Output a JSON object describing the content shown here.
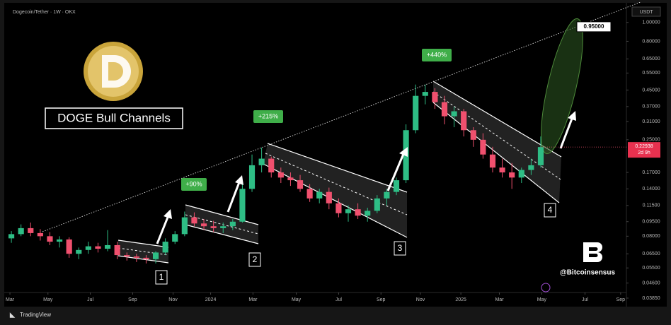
{
  "chart_data": {
    "type": "candlestick",
    "title": "Dogecoin/Tether · 1W · OKX",
    "unit": "USDT",
    "log_scale": true,
    "grid": false,
    "up_color": "#2ebd85",
    "down_color": "#f0506e",
    "open": [
      0.078,
      0.082,
      0.088,
      0.083,
      0.08,
      0.075,
      0.077,
      0.065,
      0.068,
      0.071,
      0.069,
      0.072,
      0.064,
      0.063,
      0.062,
      0.061,
      0.066,
      0.075,
      0.082,
      0.1,
      0.093,
      0.09,
      0.088,
      0.09,
      0.095,
      0.14,
      0.185,
      0.2,
      0.17,
      0.16,
      0.155,
      0.14,
      0.125,
      0.135,
      0.118,
      0.105,
      0.11,
      0.102,
      0.108,
      0.125,
      0.135,
      0.155,
      0.28,
      0.42,
      0.44,
      0.39,
      0.33,
      0.35,
      0.28,
      0.25,
      0.21,
      0.18,
      0.17,
      0.16,
      0.175,
      0.185
    ],
    "high": [
      0.085,
      0.092,
      0.094,
      0.087,
      0.084,
      0.08,
      0.079,
      0.07,
      0.075,
      0.074,
      0.086,
      0.075,
      0.066,
      0.065,
      0.064,
      0.067,
      0.078,
      0.085,
      0.107,
      0.106,
      0.098,
      0.096,
      0.094,
      0.098,
      0.15,
      0.21,
      0.228,
      0.205,
      0.18,
      0.17,
      0.165,
      0.148,
      0.14,
      0.142,
      0.125,
      0.115,
      0.118,
      0.112,
      0.13,
      0.14,
      0.16,
      0.3,
      0.48,
      0.48,
      0.46,
      0.42,
      0.37,
      0.36,
      0.29,
      0.27,
      0.23,
      0.2,
      0.19,
      0.18,
      0.2,
      0.26
    ],
    "low": [
      0.074,
      0.08,
      0.08,
      0.076,
      0.072,
      0.07,
      0.062,
      0.061,
      0.065,
      0.066,
      0.067,
      0.061,
      0.06,
      0.059,
      0.058,
      0.058,
      0.064,
      0.073,
      0.08,
      0.09,
      0.086,
      0.084,
      0.083,
      0.086,
      0.094,
      0.135,
      0.17,
      0.16,
      0.15,
      0.145,
      0.135,
      0.12,
      0.118,
      0.11,
      0.1,
      0.095,
      0.098,
      0.095,
      0.105,
      0.115,
      0.13,
      0.15,
      0.27,
      0.38,
      0.36,
      0.3,
      0.29,
      0.26,
      0.23,
      0.2,
      0.17,
      0.16,
      0.14,
      0.15,
      0.165,
      0.18
    ],
    "close": [
      0.082,
      0.088,
      0.083,
      0.08,
      0.075,
      0.077,
      0.065,
      0.068,
      0.071,
      0.069,
      0.072,
      0.064,
      0.063,
      0.062,
      0.061,
      0.066,
      0.075,
      0.082,
      0.1,
      0.093,
      0.09,
      0.088,
      0.09,
      0.095,
      0.14,
      0.185,
      0.2,
      0.17,
      0.16,
      0.155,
      0.14,
      0.125,
      0.135,
      0.118,
      0.105,
      0.11,
      0.102,
      0.108,
      0.125,
      0.135,
      0.155,
      0.28,
      0.42,
      0.44,
      0.39,
      0.33,
      0.35,
      0.28,
      0.25,
      0.21,
      0.18,
      0.17,
      0.16,
      0.175,
      0.185,
      0.22938
    ],
    "xlim": [
      -0.3,
      63.9
    ],
    "xticks": [
      {
        "value": -0.15,
        "label": "Mar"
      },
      {
        "value": 3.8,
        "label": "May"
      },
      {
        "value": 8.2,
        "label": "Jul"
      },
      {
        "value": 12.6,
        "label": "Sep"
      },
      {
        "value": 16.8,
        "label": "Nov"
      },
      {
        "value": 20.7,
        "label": "2024"
      },
      {
        "value": 25.1,
        "label": "Mar"
      },
      {
        "value": 29.6,
        "label": "May"
      },
      {
        "value": 34.0,
        "label": "Jul"
      },
      {
        "value": 38.4,
        "label": "Sep"
      },
      {
        "value": 42.5,
        "label": "Nov"
      },
      {
        "value": 46.7,
        "label": "2025"
      },
      {
        "value": 50.7,
        "label": "Mar"
      },
      {
        "value": 55.1,
        "label": "May"
      },
      {
        "value": 59.6,
        "label": "Jul"
      },
      {
        "value": 63.3,
        "label": "Sep"
      }
    ],
    "ylim": [
      0.036,
      1.15
    ],
    "yticks": [
      {
        "value": 1.0,
        "label": "1.00000"
      },
      {
        "value": 0.8,
        "label": "0.80000"
      },
      {
        "value": 0.65,
        "label": "0.65000"
      },
      {
        "value": 0.55,
        "label": "0.55000"
      },
      {
        "value": 0.45,
        "label": "0.45000"
      },
      {
        "value": 0.37,
        "label": "0.37000"
      },
      {
        "value": 0.31,
        "label": "0.31000"
      },
      {
        "value": 0.25,
        "label": "0.25000"
      },
      {
        "value": 0.17,
        "label": "0.17000"
      },
      {
        "value": 0.14,
        "label": "0.14000"
      },
      {
        "value": 0.115,
        "label": "0.11500"
      },
      {
        "value": 0.095,
        "label": "0.09500"
      },
      {
        "value": 0.08,
        "label": "0.08000"
      },
      {
        "value": 0.065,
        "label": "0.06500"
      },
      {
        "value": 0.055,
        "label": "0.05500"
      },
      {
        "value": 0.046,
        "label": "0.04600"
      },
      {
        "value": 0.0385,
        "label": "0.03850"
      }
    ],
    "target_price": {
      "value": 0.95,
      "label": "0.95000"
    },
    "last_price": 0.22938,
    "countdown": "2d 9h",
    "overlay_title": "DOGE Bull Channels",
    "gains": [
      "+90%",
      "+215%",
      "+440%"
    ],
    "channel_labels": [
      "1",
      "2",
      "3",
      "4"
    ],
    "watermark": "@Bitcoinsensus",
    "footer": "TradingView"
  }
}
